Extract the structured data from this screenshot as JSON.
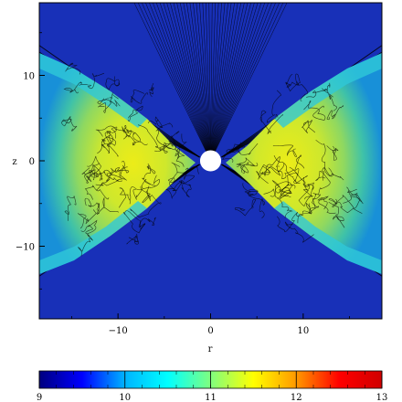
{
  "chart_data": {
    "type": "heatmap",
    "title": "",
    "xlabel": "r",
    "ylabel": "z",
    "xlim": [
      -18.5,
      18.5
    ],
    "ylim": [
      -18.5,
      18.5
    ],
    "x_ticks": [
      -10,
      0,
      10
    ],
    "x_tick_labels": [
      "−10",
      "0",
      "10"
    ],
    "y_ticks": [
      10,
      0,
      -10
    ],
    "y_tick_labels": [
      "10",
      "0",
      "−10"
    ],
    "grid": false,
    "colorbar": {
      "location": "bottom",
      "range": [
        9,
        13
      ],
      "ticks": [
        9,
        10,
        11,
        12,
        13
      ],
      "tick_labels": [
        "9",
        "10",
        "11",
        "12",
        "13"
      ]
    },
    "colormap_stops": [
      "#00007f",
      "#0000ff",
      "#00b4ff",
      "#00ffff",
      "#7fff7f",
      "#ffff00",
      "#ff9900",
      "#ff0000",
      "#d00000"
    ],
    "central_object": {
      "r": 0,
      "z": 0,
      "radius": 1.2,
      "color": "#ffffff"
    },
    "features": [
      {
        "name": "right-torus-lobe",
        "peak_value": 11.3,
        "center": [
          7.5,
          0
        ]
      },
      {
        "name": "left-torus-lobe",
        "peak_value": 11.3,
        "center": [
          -7.5,
          0
        ]
      }
    ],
    "background_value": 9.3
  }
}
